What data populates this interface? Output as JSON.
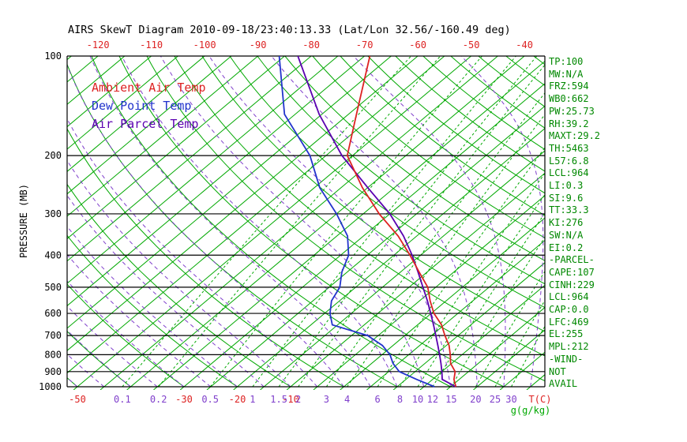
{
  "title": "AIRS SkewT Diagram 2010-09-18/23:40:13.33 (Lat/Lon 32.56/-160.49 deg)",
  "colors": {
    "ambient": "#dd2222",
    "dewpoint": "#2233cc",
    "parcel": "#5a00b0",
    "isotherm": "#00a800",
    "dry_adiabat": "#00a800",
    "moist_adiabat": "#8040cc",
    "mixing_ratio": "#00a800",
    "axis_red": "#dd2222",
    "mixing_label": "#8040cc",
    "unit_g_label": "#00a800",
    "stats_text": "#008800",
    "grid": "#000000"
  },
  "legend": {
    "items": [
      {
        "label": "Ambient Air Temp",
        "color": "#dd2222"
      },
      {
        "label": "Dew Point Temp",
        "color": "#2233cc"
      },
      {
        "label": "Air Parcel Temp",
        "color": "#5a00b0"
      }
    ]
  },
  "y_axis": {
    "label": "PRESSURE (MB)",
    "ticks": [
      100,
      200,
      300,
      400,
      500,
      600,
      700,
      800,
      900,
      1000
    ]
  },
  "x_axis_top": {
    "ticks": [
      -120,
      -110,
      -100,
      -90,
      -80,
      -70,
      -60,
      -50,
      -40
    ]
  },
  "x_axis_bottom": {
    "temp_ticks": [
      -50,
      -30,
      -20,
      -10
    ],
    "temp_unit": "T(C)",
    "mixing_ticks": [
      0.1,
      0.2,
      0.5,
      1,
      1.5,
      2,
      3,
      4,
      6,
      8,
      10,
      12,
      15,
      20,
      25,
      30
    ],
    "mixing_unit": "g(g/kg)"
  },
  "stats": [
    "TP:100",
    "MW:N/A",
    "FRZ:594",
    "WB0:662",
    "PW:25.73",
    "RH:39.2",
    "MAXT:29.2",
    "TH:5463",
    "L57:6.8",
    "LCL:964",
    "LI:0.3",
    "SI:9.6",
    "TT:33.3",
    "KI:276",
    "SW:N/A",
    "EI:0.2",
    "-PARCEL-",
    "CAPE:107",
    "CINH:229",
    "LCL:964",
    "CAP:0.0",
    "LFC:469",
    "EL:255",
    "MPL:212",
    "-WIND-",
    "NOT",
    "AVAIL"
  ],
  "chart_data": {
    "type": "line",
    "subtype": "skew-t_log-p",
    "title": "AIRS SkewT Diagram 2010-09-18/23:40:13.33 (Lat/Lon 32.56/-160.49 deg)",
    "xlabel": "T(C)",
    "ylabel": "PRESSURE (MB)",
    "y_scale": "log",
    "ylim": [
      100,
      1000
    ],
    "background": {
      "isotherms": {
        "min": -160,
        "max": 45,
        "step": 5
      },
      "dry_adiabats": {
        "min": -60,
        "max": 180,
        "step": 10
      },
      "moist_adiabats": {
        "min": -55,
        "max": 40,
        "step": 5
      },
      "mixing_ratio_lines": [
        0.1,
        0.2,
        0.5,
        1,
        1.5,
        2,
        3,
        4,
        6,
        8,
        10,
        12,
        15,
        20,
        25,
        30
      ]
    },
    "pressure_levels_mb": [
      1000,
      950,
      900,
      850,
      800,
      750,
      700,
      650,
      600,
      550,
      500,
      450,
      400,
      350,
      300,
      250,
      200,
      150,
      100
    ],
    "series": [
      {
        "name": "Ambient Air Temp",
        "color": "#dd2222",
        "temps_c": [
          21.0,
          19.0,
          17.5,
          14.8,
          12.8,
          10.5,
          7.5,
          4.5,
          0.5,
          -3.0,
          -6.5,
          -11.5,
          -17.0,
          -23.5,
          -32.0,
          -41.0,
          -51.0,
          -58.5,
          -69.0
        ]
      },
      {
        "name": "Dew Point Temp",
        "color": "#2233cc",
        "temps_c": [
          17.0,
          12.0,
          7.0,
          4.0,
          1.5,
          -2.0,
          -7.0,
          -16.0,
          -19.0,
          -21.5,
          -23.0,
          -26.0,
          -28.5,
          -33.0,
          -40.0,
          -49.0,
          -58.0,
          -72.0,
          -86.0
        ]
      },
      {
        "name": "Air Parcel Temp",
        "color": "#5a00b0",
        "temps_c": [
          21.0,
          16.8,
          15.0,
          13.0,
          10.8,
          8.4,
          5.8,
          3.0,
          -0.1,
          -3.5,
          -7.4,
          -11.7,
          -16.6,
          -22.5,
          -30.0,
          -40.0,
          -52.0,
          -65.5,
          -82.5
        ]
      }
    ]
  }
}
